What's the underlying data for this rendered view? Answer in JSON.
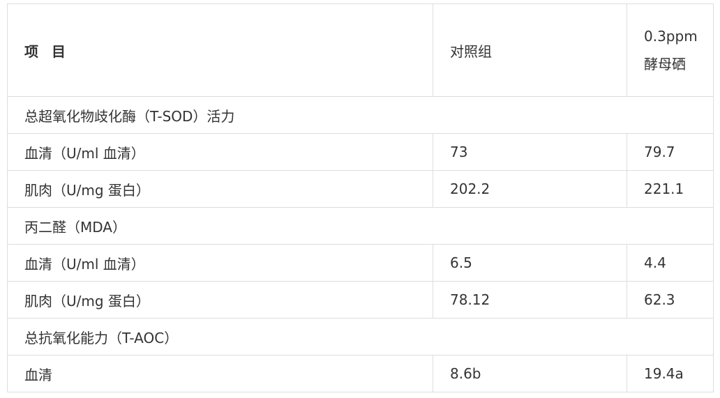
{
  "table": {
    "headers": [
      "项 目",
      "对照组",
      "0.3ppm酵母硒"
    ],
    "rows": [
      {
        "section": "总超氧化物歧化酶（T-SOD）活力"
      },
      {
        "cells": [
          "血清（U/ml 血清）",
          "73",
          "79.7"
        ]
      },
      {
        "cells": [
          "肌肉（U/mg 蛋白）",
          "202.2",
          "221.1"
        ]
      },
      {
        "section": "丙二醛（MDA）"
      },
      {
        "cells": [
          "血清（U/ml 血清）",
          "6.5",
          "4.4"
        ]
      },
      {
        "cells": [
          "肌肉（U/mg 蛋白）",
          "78.12",
          "62.3"
        ]
      },
      {
        "section": "总抗氧化能力（T-AOC）"
      },
      {
        "cells": [
          "血清",
          "8.6b",
          "19.4a"
        ]
      }
    ]
  }
}
